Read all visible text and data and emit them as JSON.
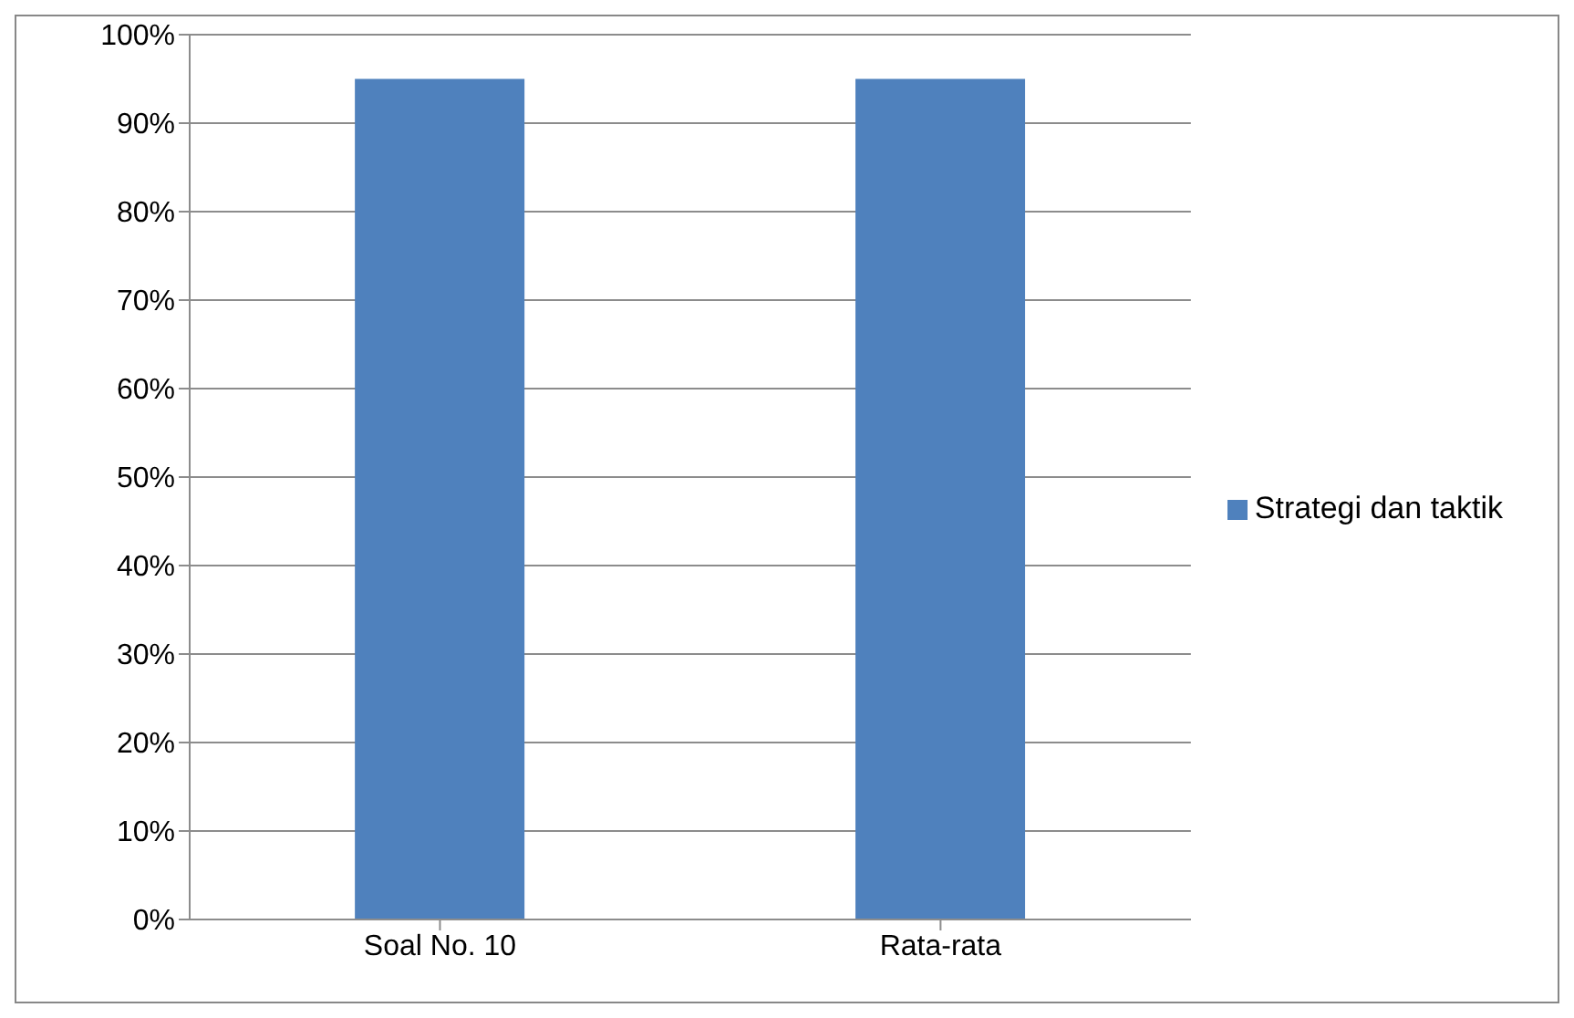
{
  "chart_data": {
    "type": "bar",
    "categories": [
      "Soal No. 10",
      "Rata-rata"
    ],
    "series": [
      {
        "name": "Strategi dan taktik",
        "color": "#4f81bd",
        "values": [
          95,
          95
        ]
      }
    ],
    "ylim": [
      0,
      100
    ],
    "yticks": [
      {
        "value": 0,
        "label": "0%"
      },
      {
        "value": 10,
        "label": "10%"
      },
      {
        "value": 20,
        "label": "20%"
      },
      {
        "value": 30,
        "label": "30%"
      },
      {
        "value": 40,
        "label": "40%"
      },
      {
        "value": 50,
        "label": "50%"
      },
      {
        "value": 60,
        "label": "60%"
      },
      {
        "value": 70,
        "label": "70%"
      },
      {
        "value": 80,
        "label": "80%"
      },
      {
        "value": 90,
        "label": "90%"
      },
      {
        "value": 100,
        "label": "100%"
      }
    ],
    "grid": "y",
    "legend": "right"
  }
}
